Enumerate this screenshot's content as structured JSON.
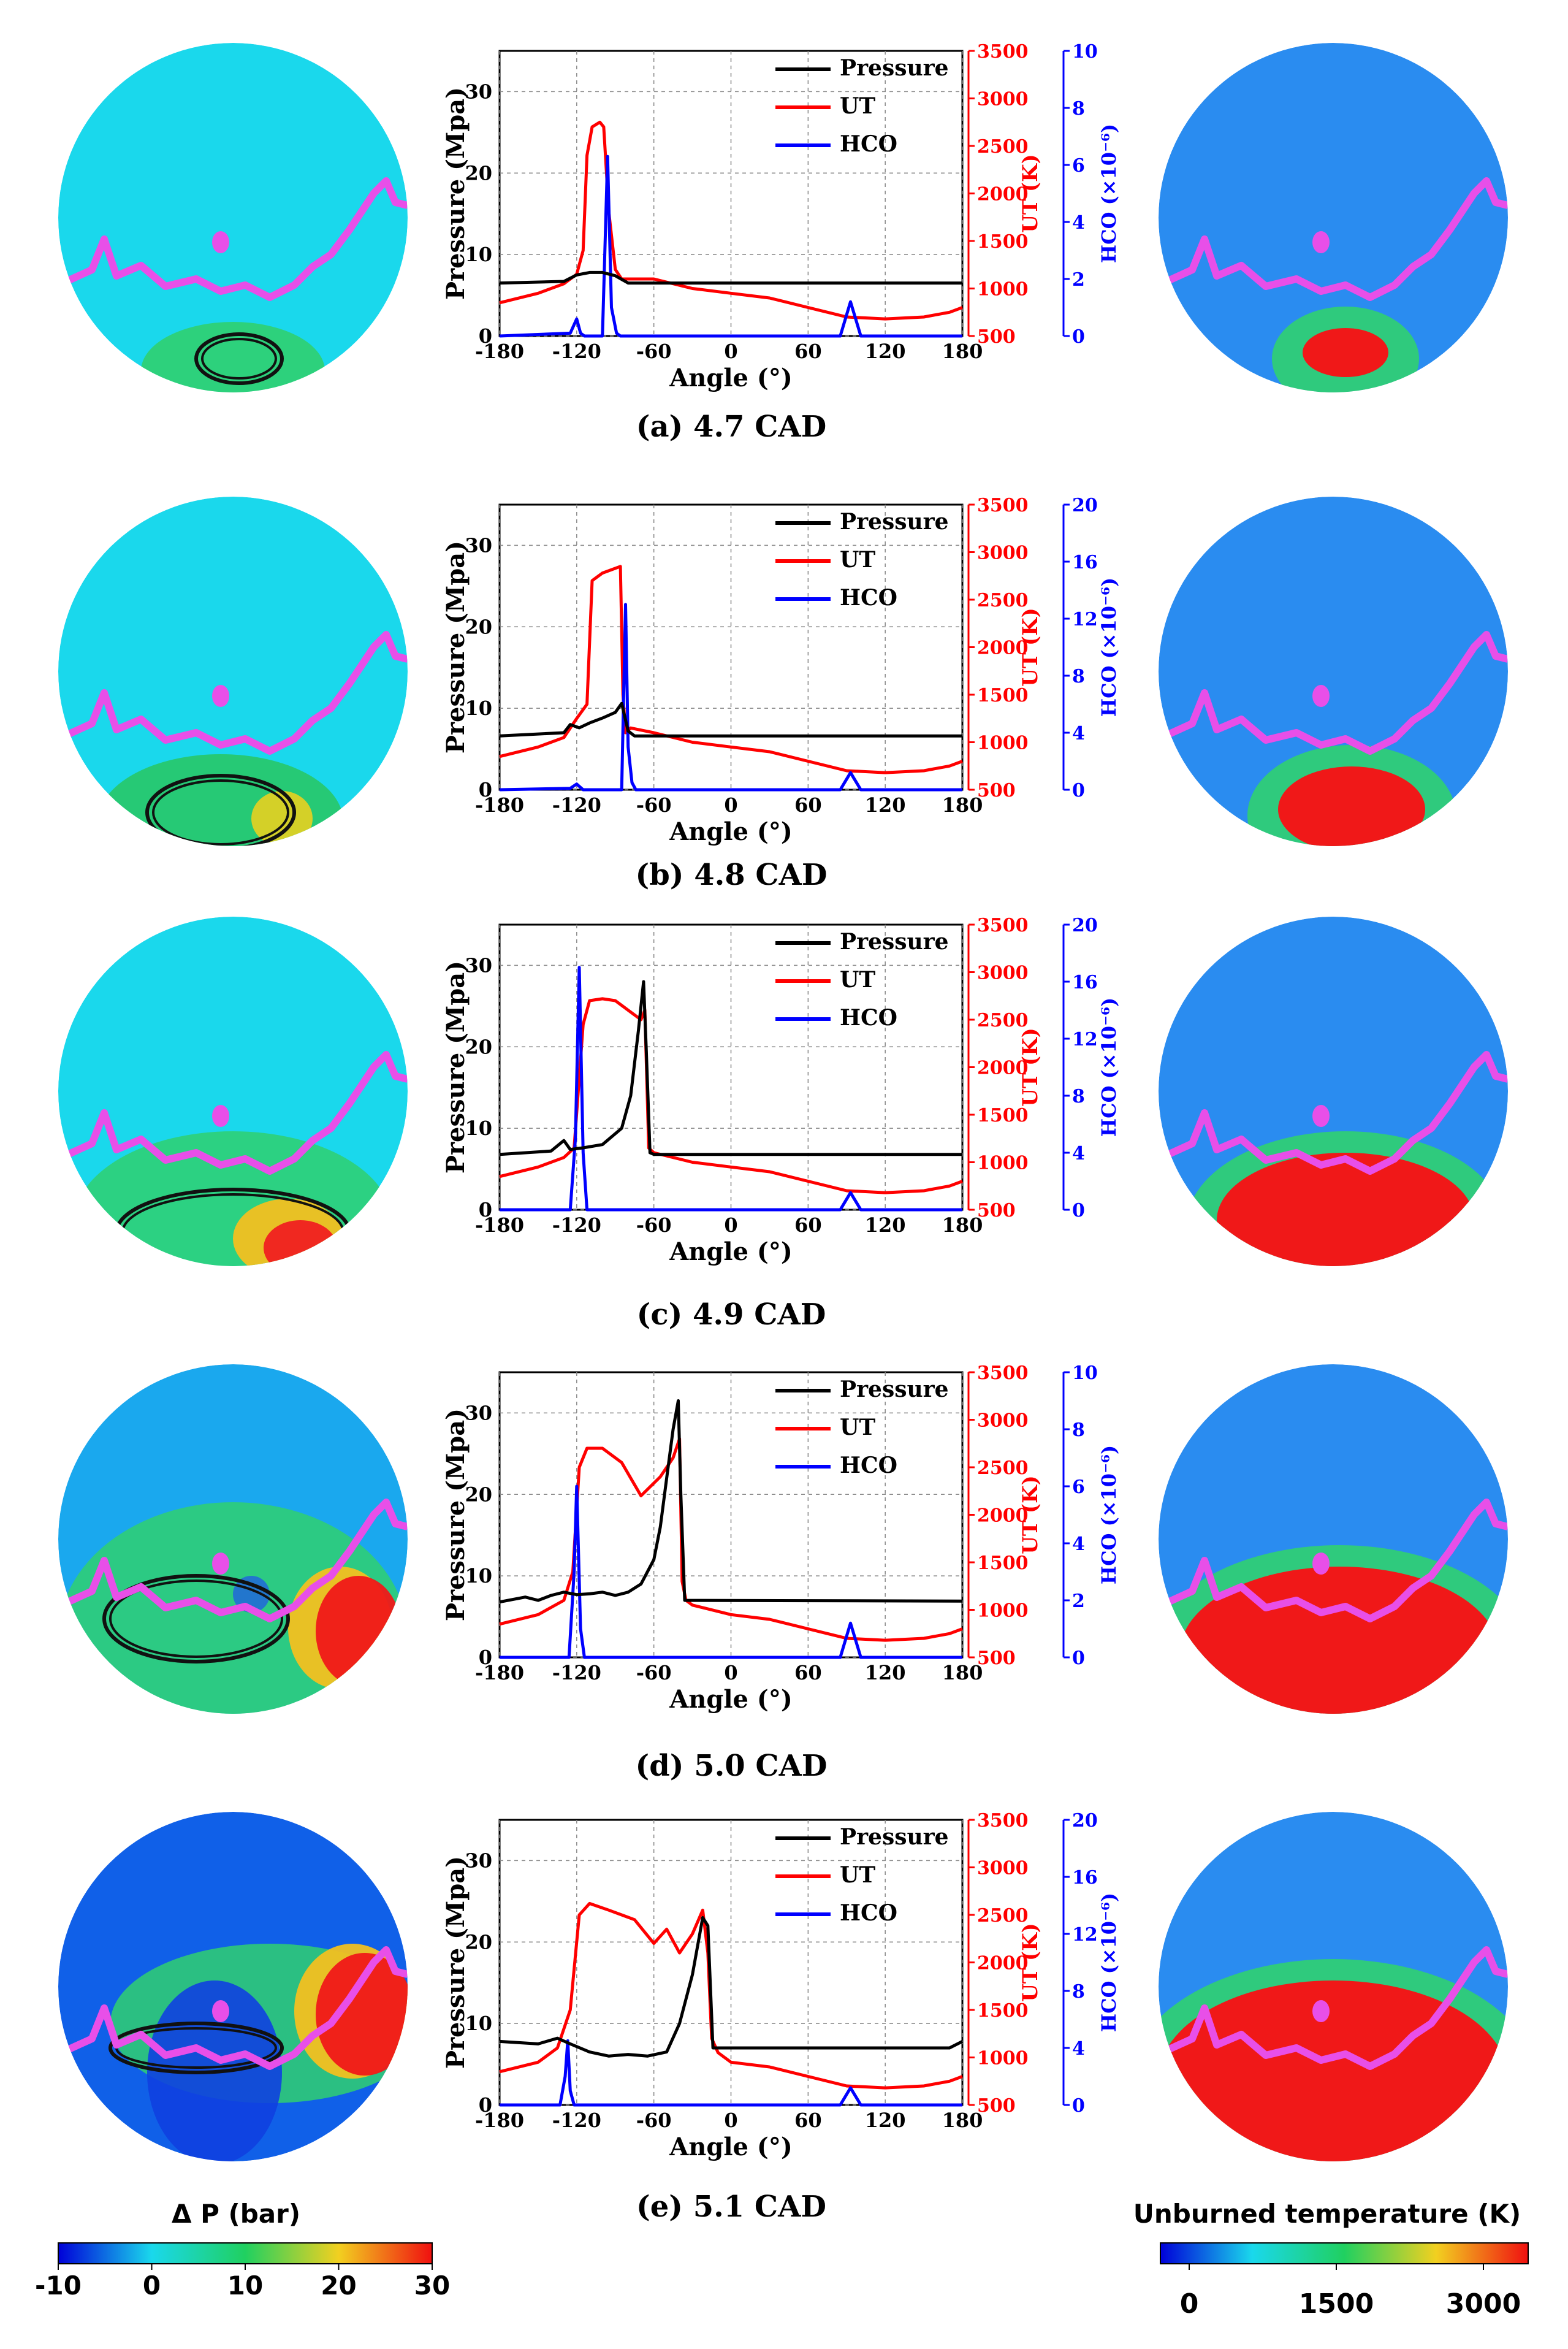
{
  "colors": {
    "pressure": "#000000",
    "ut": "#ff0000",
    "hco": "#0000ff",
    "flame_front": "#e84fe8",
    "ambient": "#1ad8ec"
  },
  "panel_labels": [
    "(a) 4.7 CAD",
    "(b) 4.8 CAD",
    "(c) 4.9 CAD",
    "(d) 5.0 CAD",
    "(e) 5.1 CAD"
  ],
  "colorbar_dp": {
    "title": "Δ P (bar)",
    "ticks": [
      "-10",
      "0",
      "10",
      "20",
      "30"
    ]
  },
  "colorbar_ut": {
    "title": "Unburned temperature (K)",
    "ticks": [
      "0",
      "1500",
      "3000"
    ]
  },
  "chart_data": [
    {
      "type": "line",
      "label": "(a) 4.7 CAD",
      "xlabel": "Angle (°)",
      "ylabel": "Pressure (Mpa)",
      "y2label": "UT (K)",
      "y3label": "HCO (×10⁻⁶)",
      "xlim": [
        -180,
        180
      ],
      "xticks": [
        "-180",
        "-120",
        "-60",
        "0",
        "60",
        "120",
        "180"
      ],
      "ylim": [
        0,
        35
      ],
      "yticks": [
        "0",
        "10",
        "20",
        "30"
      ],
      "y2lim": [
        500,
        3500
      ],
      "y2ticks": [
        "500",
        "1000",
        "1500",
        "2000",
        "2500",
        "3000",
        "3500"
      ],
      "y3lim": [
        0,
        10
      ],
      "y3ticks": [
        "0",
        "2",
        "4",
        "6",
        "8",
        "10"
      ],
      "legend": [
        "Pressure",
        "UT",
        "HCO"
      ],
      "series": [
        {
          "name": "Pressure",
          "x": [
            -180,
            -130,
            -120,
            -110,
            -100,
            -90,
            -80,
            180
          ],
          "y": [
            6.5,
            6.7,
            7.5,
            7.8,
            7.8,
            7.4,
            6.5,
            6.5
          ]
        },
        {
          "name": "UT",
          "x": [
            -180,
            -150,
            -130,
            -120,
            -115,
            -112,
            -108,
            -102,
            -99,
            -95,
            -90,
            -85,
            -60,
            -30,
            0,
            30,
            60,
            90,
            120,
            150,
            170,
            180
          ],
          "y": [
            850,
            950,
            1050,
            1150,
            1400,
            2400,
            2700,
            2750,
            2700,
            1800,
            1200,
            1100,
            1100,
            1000,
            950,
            900,
            800,
            700,
            680,
            700,
            750,
            800
          ]
        },
        {
          "name": "HCO",
          "x": [
            -180,
            -125,
            -120,
            -117,
            -114,
            -100,
            -96,
            -93,
            -89,
            -86,
            -60,
            85,
            93,
            101,
            180
          ],
          "y": [
            0,
            0.1,
            0.6,
            0.1,
            0,
            0,
            6.3,
            1.0,
            0.1,
            0,
            0,
            0,
            1.2,
            0,
            0
          ]
        }
      ]
    },
    {
      "type": "line",
      "label": "(b) 4.8 CAD",
      "xlabel": "Angle (°)",
      "ylabel": "Pressure (Mpa)",
      "y2label": "UT (K)",
      "y3label": "HCO (×10⁻⁶)",
      "xlim": [
        -180,
        180
      ],
      "xticks": [
        "-180",
        "-120",
        "-60",
        "0",
        "60",
        "120",
        "180"
      ],
      "ylim": [
        0,
        35
      ],
      "yticks": [
        "0",
        "10",
        "20",
        "30"
      ],
      "y2lim": [
        500,
        3500
      ],
      "y2ticks": [
        "500",
        "1000",
        "1500",
        "2000",
        "2500",
        "3000",
        "3500"
      ],
      "y3lim": [
        0,
        20
      ],
      "y3ticks": [
        "0",
        "4",
        "8",
        "12",
        "16",
        "20"
      ],
      "legend": [
        "Pressure",
        "UT",
        "HCO"
      ],
      "series": [
        {
          "name": "Pressure",
          "x": [
            -180,
            -130,
            -125,
            -118,
            -110,
            -100,
            -90,
            -85,
            -80,
            -75,
            180
          ],
          "y": [
            6.6,
            7.0,
            8.0,
            7.6,
            8.2,
            8.8,
            9.5,
            10.6,
            7.2,
            6.6,
            6.6
          ]
        },
        {
          "name": "UT",
          "x": [
            -180,
            -150,
            -130,
            -120,
            -112,
            -108,
            -100,
            -86,
            -84,
            -82,
            -78,
            -60,
            -30,
            0,
            30,
            60,
            90,
            120,
            150,
            170,
            180
          ],
          "y": [
            850,
            950,
            1050,
            1250,
            1400,
            2700,
            2780,
            2850,
            1500,
            1100,
            1150,
            1100,
            1000,
            950,
            900,
            800,
            700,
            680,
            700,
            750,
            800
          ]
        },
        {
          "name": "HCO",
          "x": [
            -180,
            -125,
            -120,
            -115,
            -85,
            -82,
            -80,
            -77,
            -74,
            85,
            93,
            101,
            180
          ],
          "y": [
            0,
            0.1,
            0.4,
            0,
            0,
            13,
            3,
            0.5,
            0,
            0,
            1.2,
            0,
            0
          ]
        }
      ]
    },
    {
      "type": "line",
      "label": "(c) 4.9 CAD",
      "xlabel": "Angle (°)",
      "ylabel": "Pressure (Mpa)",
      "y2label": "UT (K)",
      "y3label": "HCO (×10⁻⁶)",
      "xlim": [
        -180,
        180
      ],
      "xticks": [
        "-180",
        "-120",
        "-60",
        "0",
        "60",
        "120",
        "180"
      ],
      "ylim": [
        0,
        35
      ],
      "yticks": [
        "0",
        "10",
        "20",
        "30"
      ],
      "y2lim": [
        500,
        3500
      ],
      "y2ticks": [
        "500",
        "1000",
        "1500",
        "2000",
        "2500",
        "3000",
        "3500"
      ],
      "y3lim": [
        0,
        20
      ],
      "y3ticks": [
        "0",
        "4",
        "8",
        "12",
        "16",
        "20"
      ],
      "legend": [
        "Pressure",
        "UT",
        "HCO"
      ],
      "series": [
        {
          "name": "Pressure",
          "x": [
            -180,
            -140,
            -130,
            -125,
            -115,
            -100,
            -85,
            -78,
            -72,
            -68,
            -66,
            -63,
            -60,
            180
          ],
          "y": [
            6.8,
            7.2,
            8.5,
            7.4,
            7.6,
            8.0,
            10.0,
            14.0,
            22.0,
            28.0,
            20.0,
            7.0,
            6.8,
            6.8
          ]
        },
        {
          "name": "UT",
          "x": [
            -180,
            -150,
            -130,
            -122,
            -115,
            -110,
            -100,
            -90,
            -80,
            -70,
            -67,
            -64,
            -60,
            -30,
            0,
            30,
            60,
            90,
            120,
            150,
            170,
            180
          ],
          "y": [
            850,
            950,
            1050,
            1150,
            2450,
            2700,
            2720,
            2700,
            2600,
            2500,
            2600,
            1150,
            1100,
            1000,
            950,
            900,
            800,
            700,
            680,
            700,
            750,
            800
          ]
        },
        {
          "name": "HCO",
          "x": [
            -180,
            -125,
            -121,
            -118,
            -115,
            -112,
            85,
            93,
            101,
            180
          ],
          "y": [
            0,
            0,
            5,
            17,
            4,
            0,
            0,
            1.2,
            0,
            0
          ]
        }
      ]
    },
    {
      "type": "line",
      "label": "(d) 5.0 CAD",
      "xlabel": "Angle (°)",
      "ylabel": "Pressure (Mpa)",
      "y2label": "UT (K)",
      "y3label": "HCO (×10⁻⁶)",
      "xlim": [
        -180,
        180
      ],
      "xticks": [
        "-180",
        "-120",
        "-60",
        "0",
        "60",
        "120",
        "180"
      ],
      "ylim": [
        0,
        35
      ],
      "yticks": [
        "0",
        "10",
        "20",
        "30"
      ],
      "y2lim": [
        500,
        3500
      ],
      "y2ticks": [
        "500",
        "1000",
        "1500",
        "2000",
        "2500",
        "3000",
        "3500"
      ],
      "y3lim": [
        0,
        10
      ],
      "y3ticks": [
        "0",
        "2",
        "4",
        "6",
        "8",
        "10"
      ],
      "legend": [
        "Pressure",
        "UT",
        "HCO"
      ],
      "series": [
        {
          "name": "Pressure",
          "x": [
            -180,
            -160,
            -150,
            -140,
            -130,
            -120,
            -110,
            -100,
            -90,
            -80,
            -70,
            -60,
            -55,
            -50,
            -45,
            -41,
            -39,
            -36,
            180
          ],
          "y": [
            6.8,
            7.4,
            7.0,
            7.6,
            8.0,
            7.7,
            7.8,
            8.0,
            7.6,
            8.0,
            9.0,
            12.0,
            16.0,
            22.0,
            28.0,
            31.5,
            20.0,
            7.0,
            6.9
          ]
        },
        {
          "name": "UT",
          "x": [
            -180,
            -150,
            -130,
            -123,
            -118,
            -112,
            -100,
            -85,
            -70,
            -55,
            -45,
            -40,
            -38,
            -35,
            -30,
            0,
            30,
            60,
            90,
            120,
            150,
            170,
            180
          ],
          "y": [
            850,
            950,
            1100,
            1400,
            2500,
            2700,
            2700,
            2550,
            2200,
            2400,
            2600,
            2800,
            1300,
            1100,
            1050,
            950,
            900,
            800,
            700,
            680,
            700,
            750,
            800
          ]
        },
        {
          "name": "HCO",
          "x": [
            -180,
            -126,
            -122,
            -120,
            -117,
            -114,
            85,
            93,
            101,
            180
          ],
          "y": [
            0,
            0,
            3,
            6,
            1,
            0,
            0,
            1.2,
            0,
            0
          ]
        }
      ]
    },
    {
      "type": "line",
      "label": "(e) 5.1 CAD",
      "xlabel": "Angle (°)",
      "ylabel": "Pressure (Mpa)",
      "y2label": "UT (K)",
      "y3label": "HCO (×10⁻⁶)",
      "xlim": [
        -180,
        180
      ],
      "xticks": [
        "-180",
        "-120",
        "-60",
        "0",
        "60",
        "120",
        "180"
      ],
      "ylim": [
        0,
        35
      ],
      "yticks": [
        "0",
        "10",
        "20",
        "30"
      ],
      "y2lim": [
        500,
        3500
      ],
      "y2ticks": [
        "500",
        "1000",
        "1500",
        "2000",
        "2500",
        "3000",
        "3500"
      ],
      "y3lim": [
        0,
        20
      ],
      "y3ticks": [
        "0",
        "4",
        "8",
        "12",
        "16",
        "20"
      ],
      "legend": [
        "Pressure",
        "UT",
        "HCO"
      ],
      "series": [
        {
          "name": "Pressure",
          "x": [
            -180,
            -150,
            -135,
            -125,
            -110,
            -95,
            -80,
            -65,
            -50,
            -40,
            -30,
            -22,
            -18,
            -14,
            -10,
            170,
            180
          ],
          "y": [
            7.8,
            7.5,
            8.2,
            7.5,
            6.5,
            6.0,
            6.2,
            6.0,
            6.5,
            10.0,
            16.0,
            23.0,
            22.0,
            7.0,
            7.0,
            7.0,
            7.8
          ]
        },
        {
          "name": "UT",
          "x": [
            -180,
            -150,
            -135,
            -125,
            -118,
            -110,
            -95,
            -75,
            -60,
            -50,
            -40,
            -30,
            -22,
            -18,
            -15,
            -10,
            0,
            30,
            60,
            90,
            120,
            150,
            170,
            180
          ],
          "y": [
            850,
            950,
            1100,
            1500,
            2500,
            2620,
            2550,
            2450,
            2200,
            2350,
            2100,
            2300,
            2550,
            2100,
            1200,
            1050,
            950,
            900,
            800,
            700,
            680,
            700,
            750,
            800
          ]
        },
        {
          "name": "HCO",
          "x": [
            -180,
            -133,
            -129,
            -127,
            -125,
            -122,
            85,
            93,
            101,
            180
          ],
          "y": [
            0,
            0,
            2,
            4.5,
            1,
            0,
            0,
            1.2,
            0,
            0
          ]
        }
      ]
    }
  ]
}
